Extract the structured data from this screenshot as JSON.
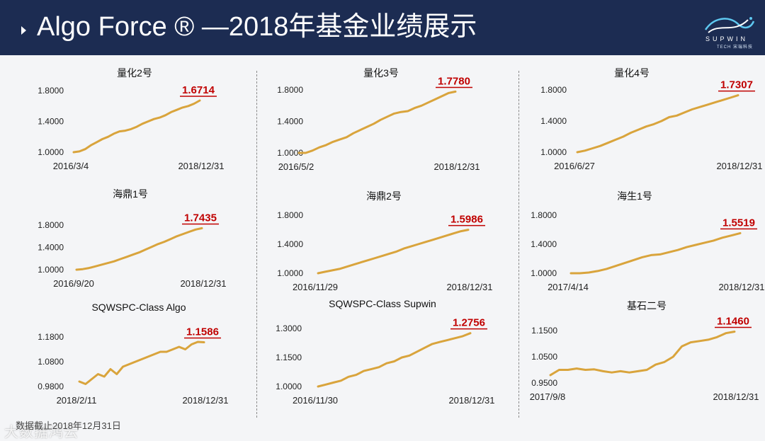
{
  "header": {
    "title": "Algo Force ® —2018年基金业绩展示",
    "logo_brand": "SUPWIN",
    "logo_sub": "TECH 宋瑞科技"
  },
  "footer": {
    "source": "数据截止2018年12月31日",
    "watermark": "大数据鸿云"
  },
  "colors": {
    "line": "#d9a43c",
    "accent": "#c00000",
    "header_bg": "#1c2c52"
  },
  "chart_data": [
    {
      "type": "line",
      "title": "量化2号",
      "start": "2016/3/4",
      "end": "2018/12/31",
      "final_label": "1.6714",
      "ylim": [
        1.0,
        1.8
      ],
      "yticks": [
        1.0,
        1.4,
        1.8
      ],
      "ytick_labels": [
        "1.0000",
        "1.4000",
        "1.8000"
      ],
      "values": [
        1.0,
        1.01,
        1.04,
        1.09,
        1.13,
        1.17,
        1.2,
        1.24,
        1.27,
        1.28,
        1.3,
        1.33,
        1.37,
        1.4,
        1.43,
        1.45,
        1.48,
        1.52,
        1.55,
        1.58,
        1.6,
        1.63,
        1.6714
      ]
    },
    {
      "type": "line",
      "title": "量化3号",
      "start": "2016/5/2",
      "end": "2018/12/31",
      "final_label": "1.7780",
      "ylim": [
        1.0,
        1.8
      ],
      "yticks": [
        1.0,
        1.4,
        1.8
      ],
      "ytick_labels": [
        "1.0000",
        "1.4000",
        "1.8000"
      ],
      "values": [
        1.0,
        1.0,
        1.03,
        1.07,
        1.1,
        1.14,
        1.17,
        1.2,
        1.25,
        1.29,
        1.33,
        1.37,
        1.42,
        1.46,
        1.5,
        1.52,
        1.53,
        1.57,
        1.6,
        1.64,
        1.68,
        1.72,
        1.76,
        1.778
      ]
    },
    {
      "type": "line",
      "title": "量化4号",
      "start": "2016/6/27",
      "end": "2018/12/31",
      "final_label": "1.7307",
      "ylim": [
        1.0,
        1.8
      ],
      "yticks": [
        1.0,
        1.4,
        1.8
      ],
      "ytick_labels": [
        "1.0000",
        "1.4000",
        "1.8000"
      ],
      "values": [
        1.0,
        1.02,
        1.05,
        1.08,
        1.12,
        1.16,
        1.2,
        1.25,
        1.29,
        1.33,
        1.36,
        1.4,
        1.45,
        1.47,
        1.51,
        1.55,
        1.58,
        1.61,
        1.64,
        1.67,
        1.7,
        1.7307
      ]
    },
    {
      "type": "line",
      "title": "海鼎1号",
      "start": "2016/9/20",
      "end": "2018/12/31",
      "final_label": "1.7435",
      "ylim": [
        1.0,
        1.8
      ],
      "yticks": [
        1.0,
        1.4,
        1.8
      ],
      "ytick_labels": [
        "1.0000",
        "1.4000",
        "1.8000"
      ],
      "values": [
        1.0,
        1.01,
        1.03,
        1.06,
        1.09,
        1.12,
        1.15,
        1.19,
        1.23,
        1.27,
        1.31,
        1.36,
        1.41,
        1.46,
        1.5,
        1.55,
        1.6,
        1.64,
        1.68,
        1.72,
        1.7435
      ]
    },
    {
      "type": "line",
      "title": "海鼎2号",
      "start": "2016/11/29",
      "end": "2018/12/31",
      "final_label": "1.5986",
      "ylim": [
        1.0,
        1.8
      ],
      "yticks": [
        1.0,
        1.4,
        1.8
      ],
      "ytick_labels": [
        "1.0000",
        "1.4000",
        "1.8000"
      ],
      "values": [
        1.0,
        1.02,
        1.04,
        1.06,
        1.09,
        1.12,
        1.15,
        1.18,
        1.21,
        1.24,
        1.27,
        1.3,
        1.34,
        1.37,
        1.4,
        1.43,
        1.46,
        1.49,
        1.52,
        1.55,
        1.58,
        1.5986
      ]
    },
    {
      "type": "line",
      "title": "海生1号",
      "start": "2017/4/14",
      "end": "2018/12/31",
      "final_label": "1.5519",
      "ylim": [
        1.0,
        1.8
      ],
      "yticks": [
        1.0,
        1.4,
        1.8
      ],
      "ytick_labels": [
        "1.0000",
        "1.4000",
        "1.8000"
      ],
      "values": [
        1.0,
        1.0,
        1.01,
        1.03,
        1.06,
        1.1,
        1.14,
        1.18,
        1.22,
        1.25,
        1.26,
        1.29,
        1.32,
        1.36,
        1.39,
        1.42,
        1.45,
        1.49,
        1.52,
        1.5519
      ]
    },
    {
      "type": "line",
      "title": "SQWSPC-Class Algo",
      "start": "2018/2/11",
      "end": "2018/12/31",
      "final_label": "1.1586",
      "ylim": [
        0.96,
        1.2
      ],
      "yticks": [
        0.98,
        1.08,
        1.18
      ],
      "ytick_labels": [
        "0.9800",
        "1.0800",
        "1.1800"
      ],
      "values": [
        1.0,
        0.99,
        1.01,
        1.03,
        1.02,
        1.05,
        1.03,
        1.06,
        1.07,
        1.08,
        1.09,
        1.1,
        1.11,
        1.12,
        1.12,
        1.13,
        1.14,
        1.13,
        1.15,
        1.16,
        1.1586
      ]
    },
    {
      "type": "line",
      "title": "SQWSPC-Class Supwin",
      "start": "2016/11/30",
      "end": "2018/12/31",
      "final_label": "1.2756",
      "ylim": [
        1.0,
        1.3
      ],
      "yticks": [
        1.0,
        1.15,
        1.3
      ],
      "ytick_labels": [
        "1.0000",
        "1.1500",
        "1.3000"
      ],
      "values": [
        1.0,
        1.01,
        1.02,
        1.03,
        1.05,
        1.06,
        1.08,
        1.09,
        1.1,
        1.12,
        1.13,
        1.15,
        1.16,
        1.18,
        1.2,
        1.22,
        1.23,
        1.24,
        1.25,
        1.26,
        1.2756
      ]
    },
    {
      "type": "line",
      "title": "基石二号",
      "start": "2017/9/8",
      "end": "2018/12/31",
      "final_label": "1.1460",
      "ylim": [
        0.95,
        1.16
      ],
      "yticks": [
        0.95,
        1.05,
        1.15
      ],
      "ytick_labels": [
        "0.9500",
        "1.0500",
        "1.1500"
      ],
      "values": [
        0.98,
        1.0,
        1.0,
        1.005,
        1.0,
        1.002,
        0.995,
        0.99,
        0.995,
        0.99,
        0.995,
        1.0,
        1.02,
        1.03,
        1.05,
        1.09,
        1.105,
        1.11,
        1.115,
        1.125,
        1.14,
        1.146
      ]
    }
  ]
}
